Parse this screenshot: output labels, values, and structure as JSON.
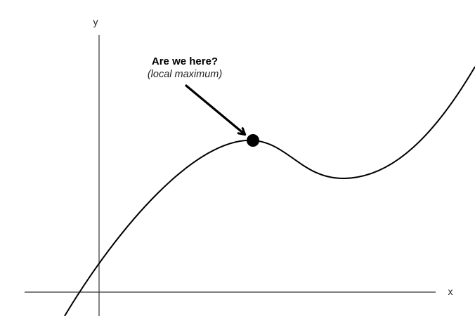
{
  "diagram": {
    "axes": {
      "x_label": "x",
      "y_label": "y"
    },
    "annotation": {
      "title": "Are we here?",
      "subtitle": "(local maximum)"
    },
    "marker": {
      "kind": "local-maximum-point"
    },
    "colors": {
      "curve": "#000000",
      "axes": "#333333",
      "arrow": "#000000",
      "marker": "#000000"
    }
  }
}
